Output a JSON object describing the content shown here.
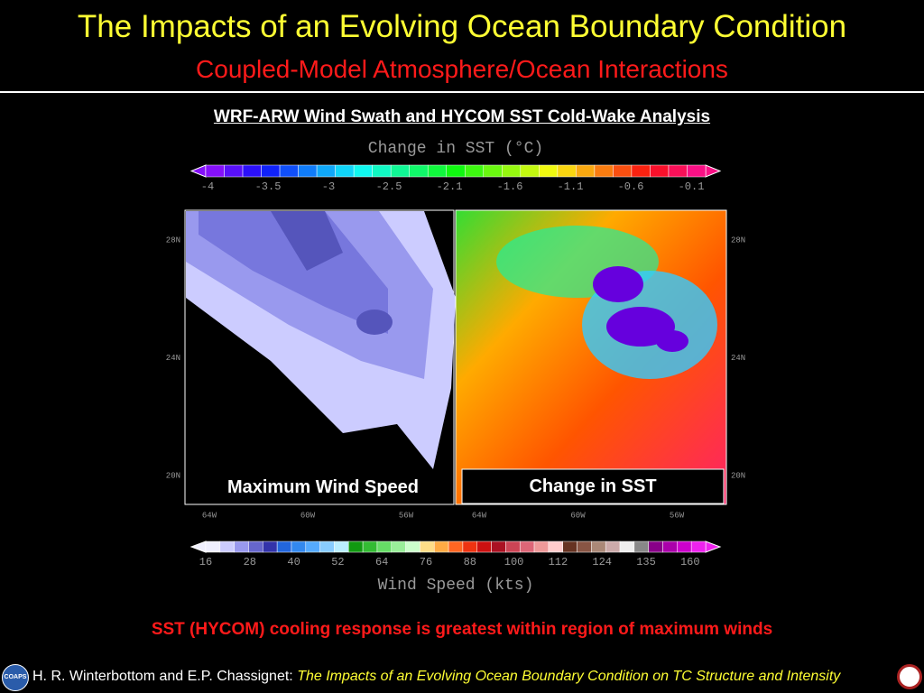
{
  "title": "The Impacts of an Evolving Ocean Boundary Condition",
  "subtitle": "Coupled-Model Atmosphere/Ocean Interactions",
  "figure": {
    "heading": "WRF-ARW Wind Swath and HYCOM SST Cold-Wake Analysis",
    "sst_colorbar": {
      "title": "Change in SST (°C)",
      "labels": [
        "-4",
        "-3.5",
        "-3",
        "-2.5",
        "-2.1",
        "-1.6",
        "-1.1",
        "-0.6",
        "-0.1"
      ]
    },
    "maps": [
      {
        "label": "Maximum Wind Speed"
      },
      {
        "label": "Change in SST"
      }
    ],
    "lat_labels": [
      "28N",
      "24N",
      "20N"
    ],
    "lon_labels": [
      "64W",
      "60W",
      "56W"
    ],
    "wind_colorbar": {
      "title": "Wind Speed (kts)",
      "labels": [
        "16",
        "28",
        "40",
        "52",
        "64",
        "76",
        "88",
        "100",
        "112",
        "124",
        "135",
        "160"
      ]
    }
  },
  "caption": "SST (HYCOM) cooling response is greatest within region of maximum winds",
  "footer": {
    "logo": "COAPS",
    "authors": "H. R. Winterbottom and E.P. Chassignet:",
    "talk_title": "The Impacts of an Evolving Ocean Boundary Condition on TC Structure and Intensity"
  }
}
